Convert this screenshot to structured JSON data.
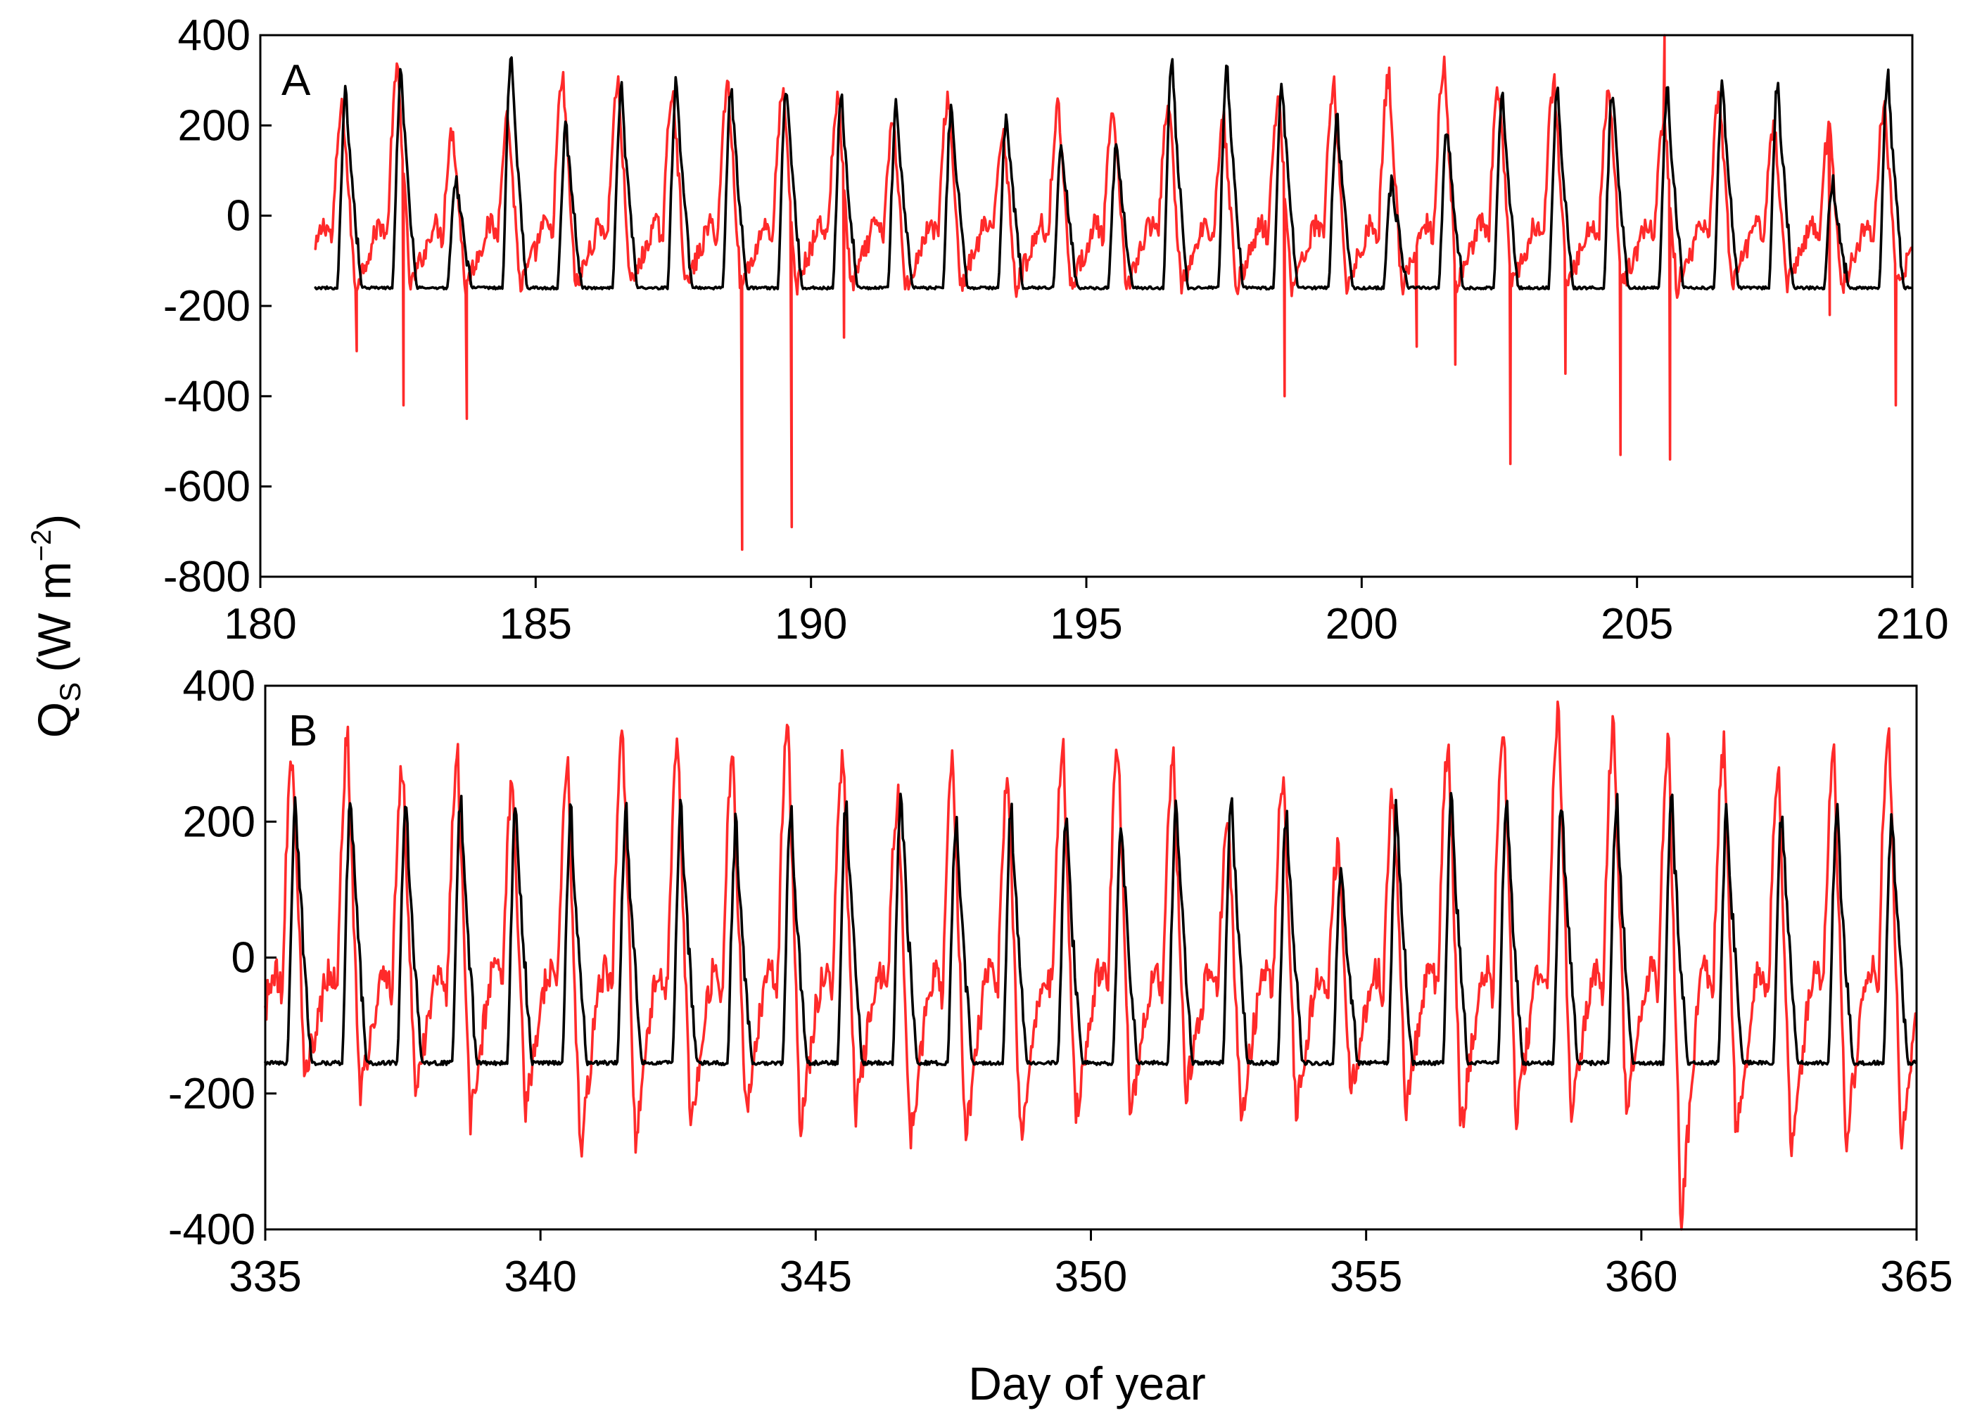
{
  "chart_data": [
    {
      "type": "line",
      "panel_label": "A",
      "xlim": [
        180,
        210
      ],
      "ylim": [
        -800,
        400
      ],
      "xticks": [
        180,
        185,
        190,
        195,
        200,
        205,
        210
      ],
      "yticks": [
        400,
        200,
        0,
        -200,
        -400,
        -600,
        -800
      ],
      "series": [
        {
          "name": "red",
          "color": "#ff2a2a",
          "description": "diurnal cycle, daily peak ~150-300 W m-2, with sharp negative spikes",
          "start_day": 181.0,
          "end_day": 210.0,
          "day_peaks": [
            240,
            320,
            190,
            220,
            300,
            290,
            280,
            290,
            270,
            260,
            200,
            260,
            190,
            240,
            220,
            250,
            210,
            260,
            290,
            310,
            330,
            280,
            290,
            280,
            210,
            260,
            200,
            190,
            240
          ],
          "spikes": [
            {
              "x": 181.75,
              "y": -300
            },
            {
              "x": 182.6,
              "y": -420
            },
            {
              "x": 183.75,
              "y": -450
            },
            {
              "x": 188.75,
              "y": -740
            },
            {
              "x": 189.65,
              "y": -690
            },
            {
              "x": 190.6,
              "y": -270
            },
            {
              "x": 198.6,
              "y": -400
            },
            {
              "x": 201.0,
              "y": -290
            },
            {
              "x": 201.7,
              "y": -330
            },
            {
              "x": 202.7,
              "y": -550
            },
            {
              "x": 203.7,
              "y": -350
            },
            {
              "x": 204.7,
              "y": -530
            },
            {
              "x": 205.6,
              "y": -540
            },
            {
              "x": 205.5,
              "y": 400
            },
            {
              "x": 208.5,
              "y": -220
            },
            {
              "x": 209.7,
              "y": -420
            }
          ]
        },
        {
          "name": "black",
          "color": "#000000",
          "description": "modelled diurnal cycle, night baseline ~-160 W m-2",
          "start_day": 181.0,
          "end_day": 210.0,
          "base": -160,
          "day_peaks": [
            280,
            320,
            90,
            360,
            200,
            290,
            300,
            290,
            280,
            270,
            250,
            250,
            230,
            160,
            160,
            350,
            350,
            290,
            220,
            80,
            200,
            280,
            280,
            280,
            280,
            300,
            300,
            80,
            320
          ]
        }
      ]
    },
    {
      "type": "line",
      "panel_label": "B",
      "xlim": [
        335,
        365
      ],
      "ylim": [
        -400,
        400
      ],
      "xticks": [
        335,
        340,
        345,
        350,
        355,
        360,
        365
      ],
      "yticks": [
        400,
        200,
        0,
        -200,
        -400
      ],
      "xlabel": "Day of year",
      "series": [
        {
          "name": "red",
          "color": "#ff2a2a",
          "description": "diurnal cycle, daily peak ~250-370 W m-2, night troughs ~-150 to -390",
          "start_day": 335.0,
          "end_day": 365.0,
          "day_peaks": [
            300,
            320,
            280,
            300,
            260,
            270,
            330,
            310,
            290,
            340,
            290,
            230,
            290,
            260,
            300,
            310,
            290,
            200,
            270,
            160,
            240,
            320,
            340,
            370,
            340,
            310,
            310,
            260,
            290,
            340
          ],
          "day_troughs": [
            -180,
            -210,
            -200,
            -250,
            -230,
            -290,
            -270,
            -250,
            -230,
            -260,
            -230,
            -270,
            -270,
            -270,
            -240,
            -240,
            -200,
            -240,
            -230,
            -200,
            -220,
            -260,
            -240,
            -240,
            -220,
            -390,
            -270,
            -300,
            -270,
            -280
          ]
        },
        {
          "name": "black",
          "color": "#000000",
          "description": "modelled diurnal cycle, night baseline ~-155 W m-2",
          "start_day": 335.0,
          "end_day": 365.0,
          "base": -155,
          "day_peaks": [
            230,
            240,
            240,
            240,
            230,
            220,
            220,
            220,
            200,
            220,
            230,
            240,
            210,
            220,
            200,
            200,
            230,
            230,
            220,
            140,
            220,
            230,
            230,
            230,
            230,
            230,
            220,
            220,
            220,
            215
          ]
        }
      ]
    }
  ],
  "y_axis_title": {
    "symbol": "Q",
    "subscript": "S",
    "units_open": "(W m",
    "exponent": "−2",
    "units_close": ")"
  }
}
